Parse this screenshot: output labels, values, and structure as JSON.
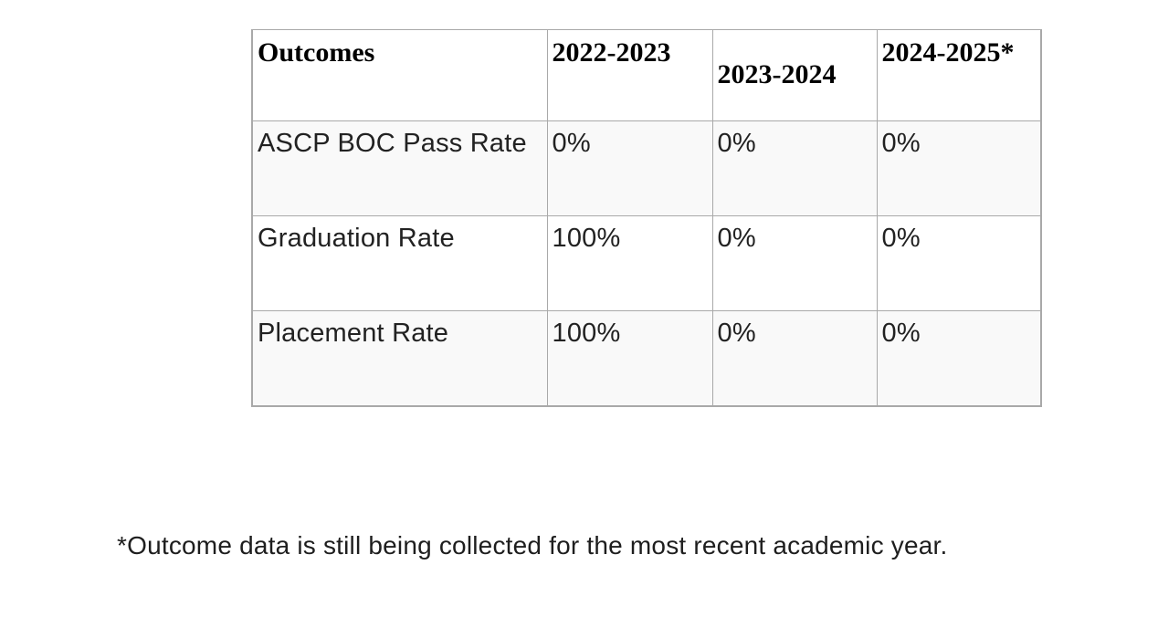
{
  "table": {
    "columns": [
      "Outcomes",
      "2022-2023",
      "2023-2024",
      "2024-2025*"
    ],
    "rows": [
      {
        "label": "ASCP BOC Pass Rate",
        "values": [
          "0%",
          "0%",
          "0%"
        ]
      },
      {
        "label": "Graduation Rate",
        "values": [
          "100%",
          "0%",
          "0%"
        ]
      },
      {
        "label": "Placement Rate",
        "values": [
          "100%",
          "0%",
          "0%"
        ]
      }
    ]
  },
  "footnote": "*Outcome data is still being collected for the most recent academic year.",
  "colors": {
    "border": "#a9a9a9",
    "row_stripe": "#f9f9f9",
    "header_text": "#000000",
    "body_text": "#222222",
    "background": "#ffffff"
  }
}
